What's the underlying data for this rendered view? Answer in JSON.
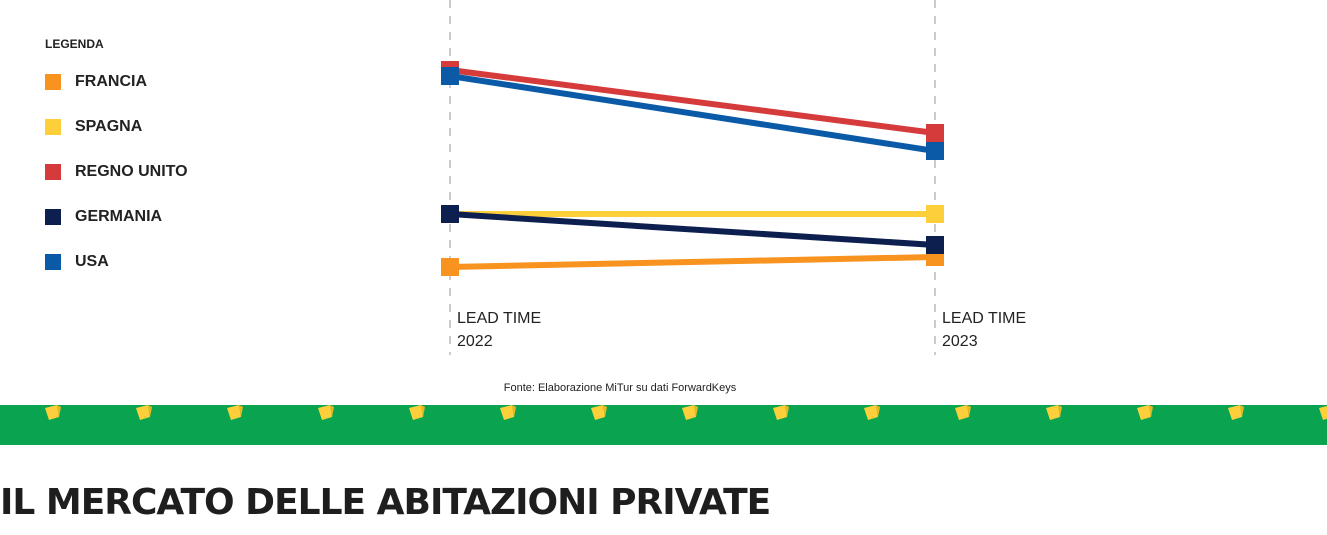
{
  "chart_data": {
    "type": "line",
    "legend_title": "LEGENDA",
    "categories": [
      "LEAD TIME 2022",
      "LEAD TIME 2023"
    ],
    "series": [
      {
        "name": "FRANCIA",
        "color": "#f7931e",
        "values": [
          16.5,
          21.5
        ]
      },
      {
        "name": "SPAGNA",
        "color": "#fdd03b",
        "values": [
          43,
          43
        ]
      },
      {
        "name": "REGNO UNITO",
        "color": "#d63b3b",
        "values": [
          115,
          83.5
        ]
      },
      {
        "name": "GERMANIA",
        "color": "#0d1f4f",
        "values": [
          43,
          27.5
        ]
      },
      {
        "name": "USA",
        "color": "#0a5aa8",
        "values": [
          112,
          74.5
        ]
      }
    ],
    "source": "Fonte: Elaborazione MiTur su dati ForwardKeys"
  },
  "heading": "IL MERCATO DELLE ABITAZIONI PRIVATE"
}
